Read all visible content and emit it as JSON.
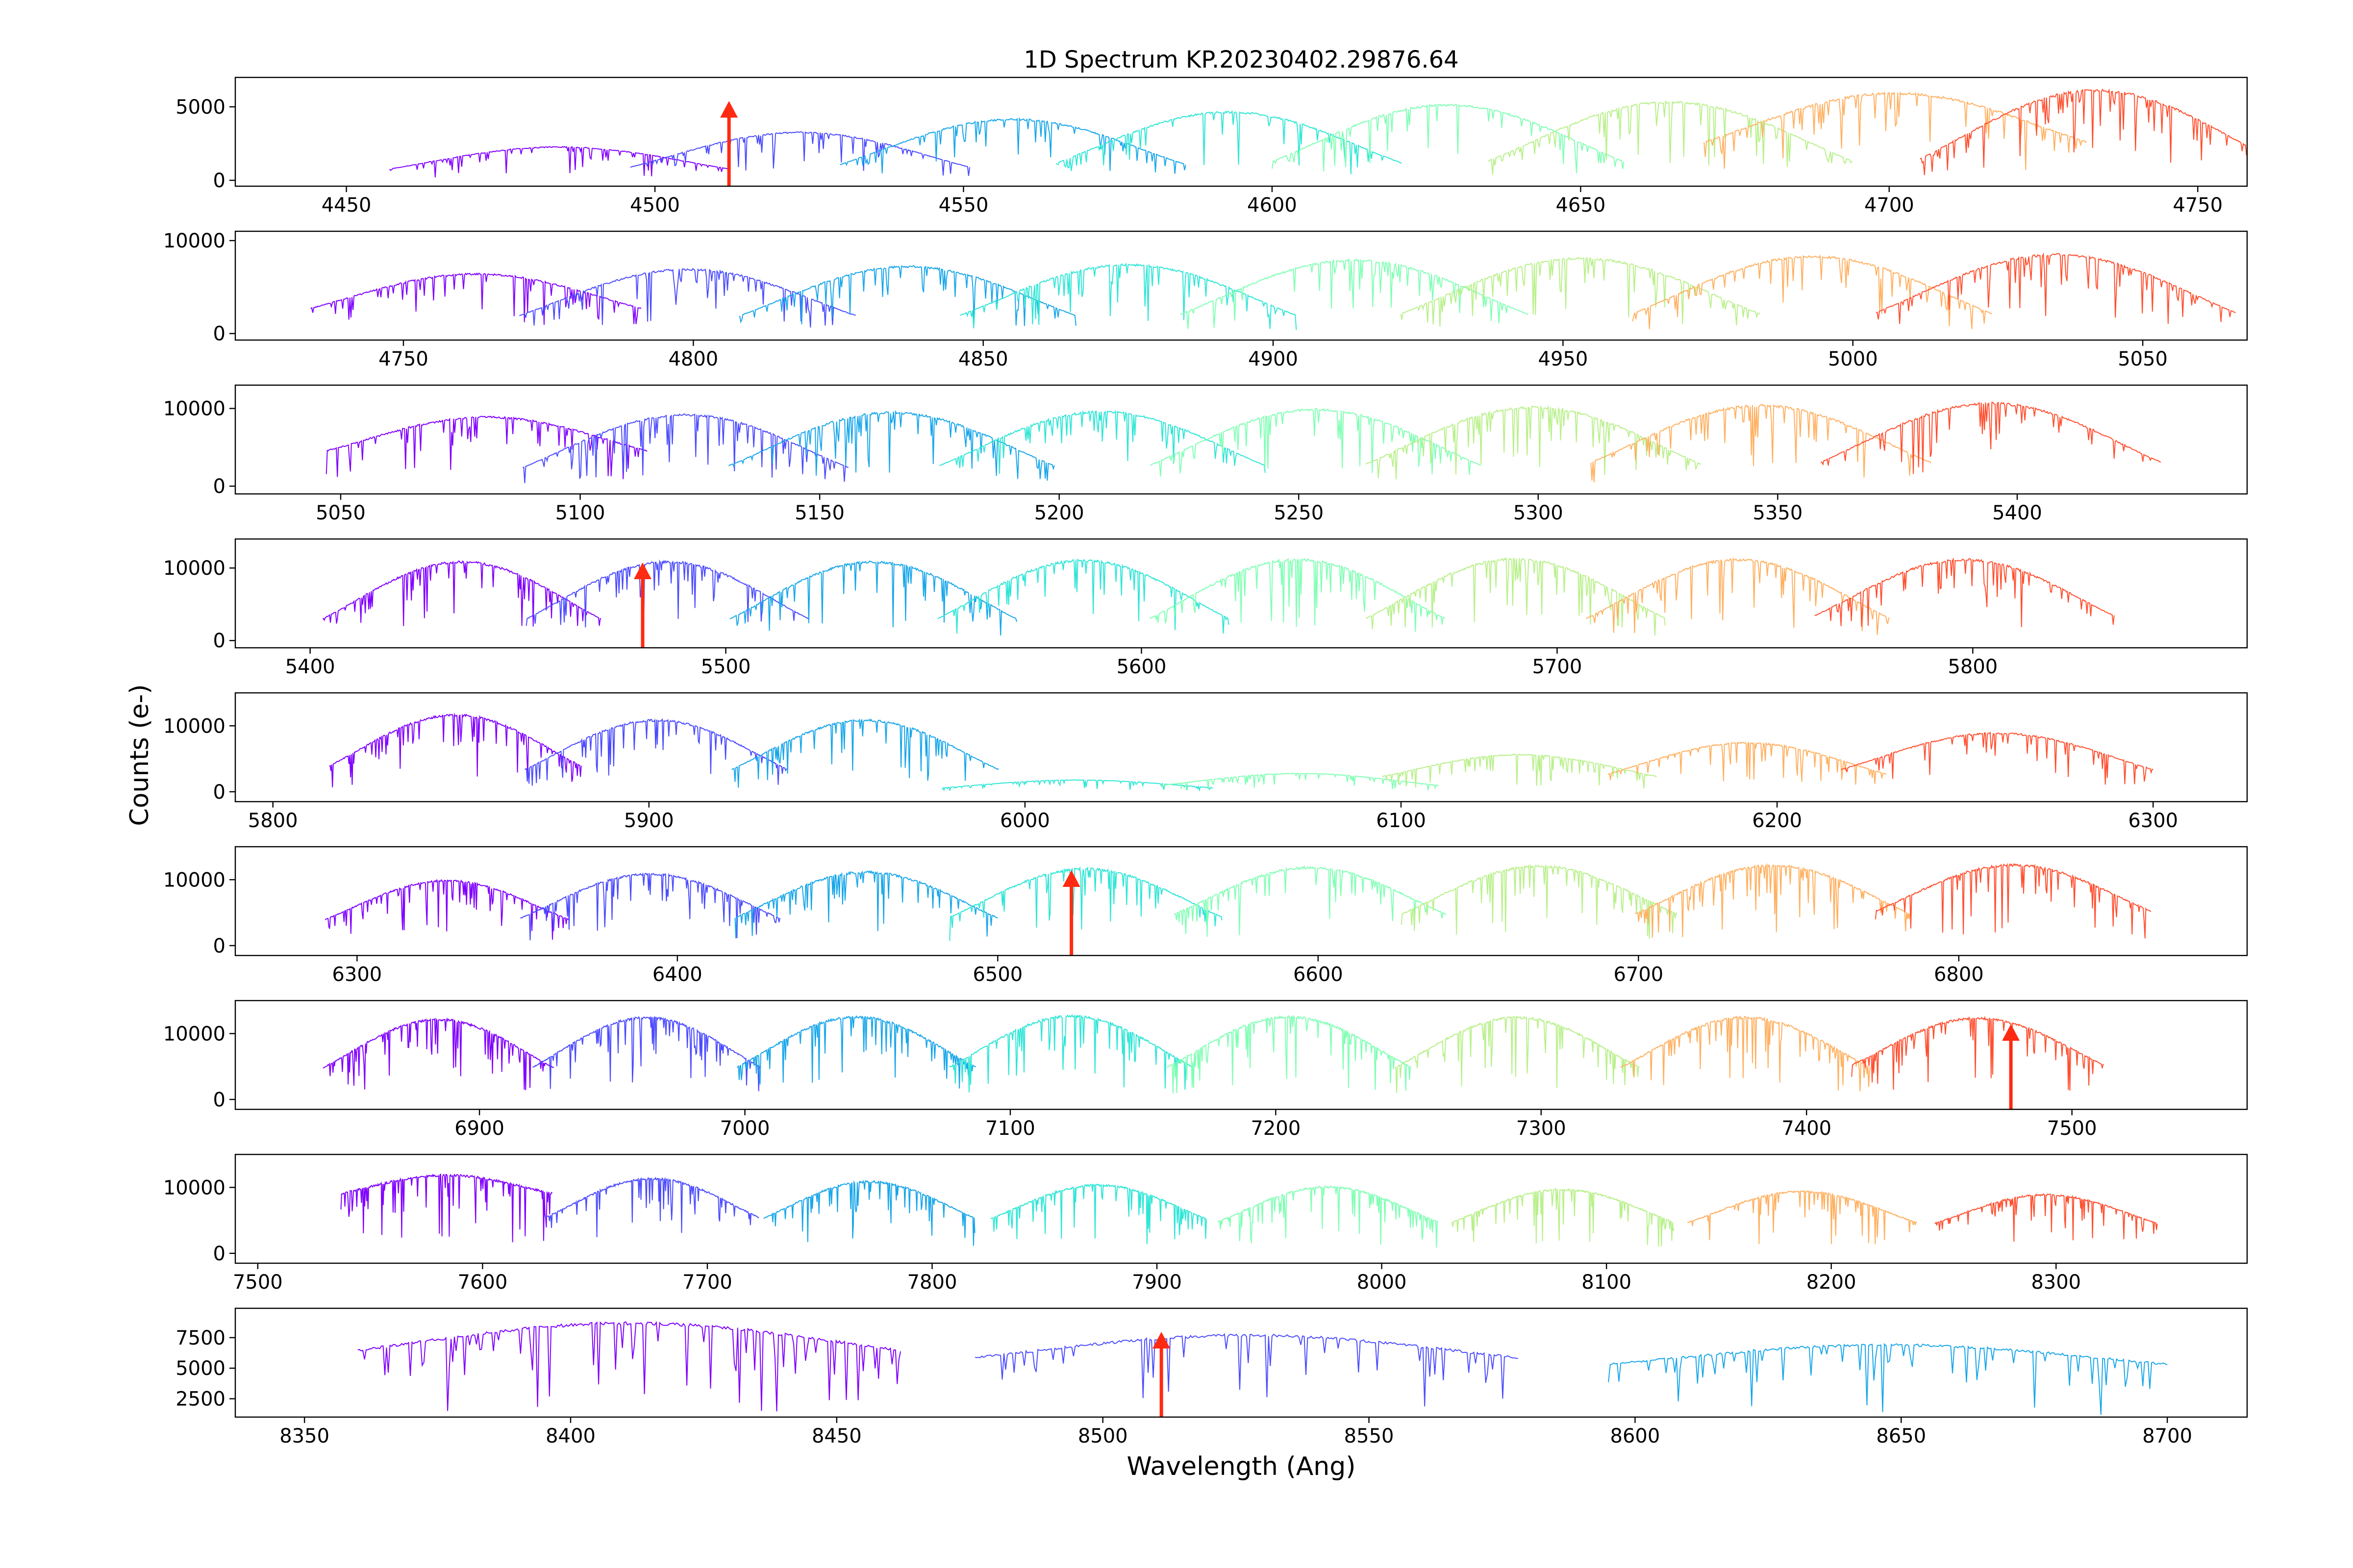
{
  "chart_data": {
    "type": "line",
    "title": "1D Spectrum KP.20230402.29876.64",
    "xlabel": "Wavelength (Ang)",
    "ylabel": "Counts (e-)",
    "grid": false,
    "legend": "none",
    "series_colormap": "rainbow",
    "marker_color": "#ff2a12",
    "panels": [
      {
        "xlim": [
          4432,
          4758
        ],
        "ylim": [
          -400,
          7000
        ],
        "xticks": [
          4450,
          4500,
          4550,
          4600,
          4650,
          4700,
          4750
        ],
        "yticks": [
          0,
          5000
        ],
        "orders": [
          {
            "start": 4457,
            "end": 4512,
            "peak": 2300,
            "edge": 400
          },
          {
            "start": 4496,
            "end": 4551,
            "peak": 3300,
            "edge": 300
          },
          {
            "start": 4530,
            "end": 4586,
            "peak": 4200,
            "edge": 300
          },
          {
            "start": 4565,
            "end": 4621,
            "peak": 4700,
            "edge": 300
          },
          {
            "start": 4600,
            "end": 4657,
            "peak": 5200,
            "edge": 300
          },
          {
            "start": 4635,
            "end": 4694,
            "peak": 5400,
            "edge": 300
          },
          {
            "start": 4670,
            "end": 4732,
            "peak": 6000,
            "edge": 1800
          },
          {
            "start": 4705,
            "end": 4762,
            "peak": 6200,
            "edge": 300
          }
        ],
        "markers": [
          4512
        ]
      },
      {
        "xlim": [
          4721,
          5068
        ],
        "ylim": [
          -700,
          11000
        ],
        "xticks": [
          4750,
          4800,
          4850,
          4900,
          4950,
          5000,
          5050
        ],
        "yticks": [
          0,
          10000
        ],
        "orders": [
          {
            "start": 4734,
            "end": 4791,
            "peak": 6500,
            "edge": 1800
          },
          {
            "start": 4770,
            "end": 4828,
            "peak": 7000,
            "edge": 700
          },
          {
            "start": 4808,
            "end": 4866,
            "peak": 7300,
            "edge": 600
          },
          {
            "start": 4846,
            "end": 4904,
            "peak": 7500,
            "edge": 600
          },
          {
            "start": 4884,
            "end": 4944,
            "peak": 8000,
            "edge": 600
          },
          {
            "start": 4922,
            "end": 4984,
            "peak": 8200,
            "edge": 600
          },
          {
            "start": 4962,
            "end": 5024,
            "peak": 8400,
            "edge": 600
          },
          {
            "start": 5004,
            "end": 5066,
            "peak": 8600,
            "edge": 700
          }
        ],
        "markers": []
      },
      {
        "xlim": [
          5028,
          5448
        ],
        "ylim": [
          -1000,
          13000
        ],
        "xticks": [
          5050,
          5100,
          5150,
          5200,
          5250,
          5300,
          5350,
          5400
        ],
        "yticks": [
          0,
          10000
        ],
        "orders": [
          {
            "start": 5047,
            "end": 5114,
            "peak": 9000,
            "edge": 3500
          },
          {
            "start": 5088,
            "end": 5156,
            "peak": 9300,
            "edge": 700
          },
          {
            "start": 5131,
            "end": 5199,
            "peak": 9600,
            "edge": 900
          },
          {
            "start": 5175,
            "end": 5243,
            "peak": 9700,
            "edge": 900
          },
          {
            "start": 5219,
            "end": 5288,
            "peak": 10000,
            "edge": 900
          },
          {
            "start": 5264,
            "end": 5334,
            "peak": 10300,
            "edge": 1000
          },
          {
            "start": 5311,
            "end": 5382,
            "peak": 10500,
            "edge": 1200
          },
          {
            "start": 5359,
            "end": 5430,
            "peak": 10800,
            "edge": 1200
          }
        ],
        "markers": []
      },
      {
        "xlim": [
          5382,
          5866
        ],
        "ylim": [
          -1000,
          14000
        ],
        "xticks": [
          5400,
          5500,
          5600,
          5700,
          5800
        ],
        "yticks": [
          0,
          10000
        ],
        "orders": [
          {
            "start": 5403,
            "end": 5470,
            "peak": 11000,
            "edge": 1000
          },
          {
            "start": 5452,
            "end": 5520,
            "peak": 11000,
            "edge": 1000
          },
          {
            "start": 5501,
            "end": 5570,
            "peak": 11000,
            "edge": 1000
          },
          {
            "start": 5551,
            "end": 5621,
            "peak": 11200,
            "edge": 1000
          },
          {
            "start": 5602,
            "end": 5673,
            "peak": 11300,
            "edge": 1000
          },
          {
            "start": 5654,
            "end": 5726,
            "peak": 11400,
            "edge": 1000
          },
          {
            "start": 5707,
            "end": 5780,
            "peak": 11300,
            "edge": 1000
          },
          {
            "start": 5762,
            "end": 5834,
            "peak": 11300,
            "edge": 1500
          }
        ],
        "markers": [
          5480
        ]
      },
      {
        "xlim": [
          5790,
          6325
        ],
        "ylim": [
          -1500,
          15000
        ],
        "xticks": [
          5800,
          5900,
          6000,
          6100,
          6200,
          6300
        ],
        "yticks": [
          0,
          10000
        ],
        "orders": [
          {
            "start": 5815,
            "end": 5882,
            "peak": 11800,
            "edge": 2000
          },
          {
            "start": 5867,
            "end": 5937,
            "peak": 11000,
            "edge": 1500
          },
          {
            "start": 5922,
            "end": 5993,
            "peak": 11000,
            "edge": 1500
          },
          {
            "start": 5978,
            "end": 6050,
            "peak": 1800,
            "edge": 300
          },
          {
            "start": 6036,
            "end": 6110,
            "peak": 2800,
            "edge": 500
          },
          {
            "start": 6095,
            "end": 6168,
            "peak": 5700,
            "edge": 1500
          },
          {
            "start": 6155,
            "end": 6229,
            "peak": 7500,
            "edge": 1500
          },
          {
            "start": 6217,
            "end": 6300,
            "peak": 9000,
            "edge": 2000
          }
        ],
        "markers": []
      },
      {
        "xlim": [
          6262,
          6890
        ],
        "ylim": [
          -1500,
          15000
        ],
        "xticks": [
          6300,
          6400,
          6500,
          6600,
          6700,
          6800
        ],
        "yticks": [
          0,
          10000
        ],
        "orders": [
          {
            "start": 6290,
            "end": 6366,
            "peak": 10000,
            "edge": 2500
          },
          {
            "start": 6351,
            "end": 6432,
            "peak": 11000,
            "edge": 2500
          },
          {
            "start": 6418,
            "end": 6500,
            "peak": 11300,
            "edge": 2500
          },
          {
            "start": 6485,
            "end": 6570,
            "peak": 11800,
            "edge": 2500
          },
          {
            "start": 6555,
            "end": 6640,
            "peak": 12000,
            "edge": 3000
          },
          {
            "start": 6626,
            "end": 6712,
            "peak": 12200,
            "edge": 3000
          },
          {
            "start": 6699,
            "end": 6785,
            "peak": 12300,
            "edge": 3000
          },
          {
            "start": 6774,
            "end": 6860,
            "peak": 12400,
            "edge": 3500
          }
        ],
        "markers": [
          6523
        ]
      },
      {
        "xlim": [
          6808,
          7566
        ],
        "ylim": [
          -1500,
          15000
        ],
        "xticks": [
          6900,
          7000,
          7100,
          7200,
          7300,
          7400,
          7500
        ],
        "yticks": [
          0,
          10000
        ],
        "orders": [
          {
            "start": 6841,
            "end": 6928,
            "peak": 12300,
            "edge": 3000
          },
          {
            "start": 6920,
            "end": 7006,
            "peak": 12600,
            "edge": 3000
          },
          {
            "start": 6997,
            "end": 7087,
            "peak": 12700,
            "edge": 3000
          },
          {
            "start": 7077,
            "end": 7169,
            "peak": 12800,
            "edge": 3000
          },
          {
            "start": 7159,
            "end": 7251,
            "peak": 12700,
            "edge": 3000
          },
          {
            "start": 7245,
            "end": 7337,
            "peak": 12600,
            "edge": 3000
          },
          {
            "start": 7330,
            "end": 7424,
            "peak": 12600,
            "edge": 3000
          },
          {
            "start": 7417,
            "end": 7512,
            "peak": 12500,
            "edge": 3500
          }
        ],
        "markers": [
          7477
        ]
      },
      {
        "xlim": [
          7490,
          8385
        ],
        "ylim": [
          -1500,
          15000
        ],
        "xticks": [
          7500,
          7600,
          7700,
          7800,
          7900,
          8000,
          8100,
          8200,
          8300
        ],
        "yticks": [
          0,
          10000
        ],
        "orders": [
          {
            "start": 7537,
            "end": 7631,
            "peak": 12000,
            "edge": 8500
          },
          {
            "start": 7628,
            "end": 7723,
            "peak": 11500,
            "edge": 4000
          },
          {
            "start": 7725,
            "end": 7819,
            "peak": 11000,
            "edge": 4000
          },
          {
            "start": 7826,
            "end": 7922,
            "peak": 10500,
            "edge": 4000
          },
          {
            "start": 7927,
            "end": 8025,
            "peak": 10200,
            "edge": 3500
          },
          {
            "start": 8031,
            "end": 8130,
            "peak": 9800,
            "edge": 3500
          },
          {
            "start": 8136,
            "end": 8238,
            "peak": 9500,
            "edge": 3500
          },
          {
            "start": 8246,
            "end": 8345,
            "peak": 9000,
            "edge": 3500
          }
        ],
        "markers": []
      },
      {
        "xlim": [
          8337,
          8715
        ],
        "ylim": [
          1000,
          9900
        ],
        "xticks": [
          8350,
          8400,
          8450,
          8500,
          8550,
          8600,
          8650,
          8700
        ],
        "yticks": [
          2500,
          5000,
          7500
        ],
        "orders": [
          {
            "start": 8360,
            "end": 8462,
            "peak": 8800,
            "edge": 6000
          },
          {
            "start": 8476,
            "end": 8578,
            "peak": 7800,
            "edge": 5500
          },
          {
            "start": 8595,
            "end": 8700,
            "peak": 7000,
            "edge": 5000
          }
        ],
        "markers": [
          8511
        ]
      }
    ]
  }
}
